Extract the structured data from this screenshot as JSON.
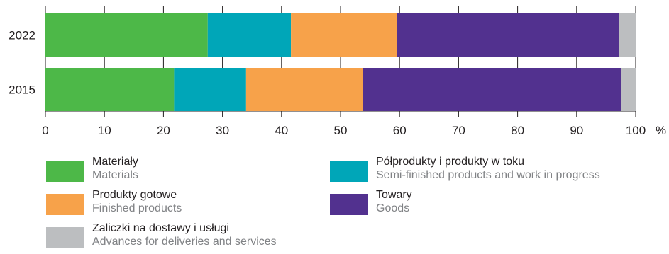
{
  "chart_data": {
    "type": "bar",
    "orientation": "horizontal",
    "stacked": true,
    "categories": [
      "2022",
      "2015"
    ],
    "series": [
      {
        "name": "Materiały",
        "name_en": "Materials",
        "color": "#4db848",
        "values": [
          27.5,
          21.8
        ]
      },
      {
        "name": "Półprodukty i produkty w toku",
        "name_en": "Semi-finished products and work in progress",
        "color": "#00a6b8",
        "values": [
          14.1,
          12.2
        ]
      },
      {
        "name": "Produkty gotowe",
        "name_en": "Finished products",
        "color": "#f7a24a",
        "values": [
          18.0,
          19.8
        ]
      },
      {
        "name": "Towary",
        "name_en": "Goods",
        "color": "#52318f",
        "values": [
          37.6,
          43.7
        ]
      },
      {
        "name": "Zaliczki na dostawy i usługi",
        "name_en": "Advances for deliveries and services",
        "color": "#bcbec0",
        "values": [
          2.8,
          2.5
        ]
      }
    ],
    "xlim": [
      0,
      100
    ],
    "xticks": [
      "0",
      "10",
      "20",
      "30",
      "40",
      "50",
      "60",
      "70",
      "80",
      "90",
      "100"
    ],
    "x_unit": "%",
    "grid": "vertical",
    "legend_position": "bottom"
  }
}
